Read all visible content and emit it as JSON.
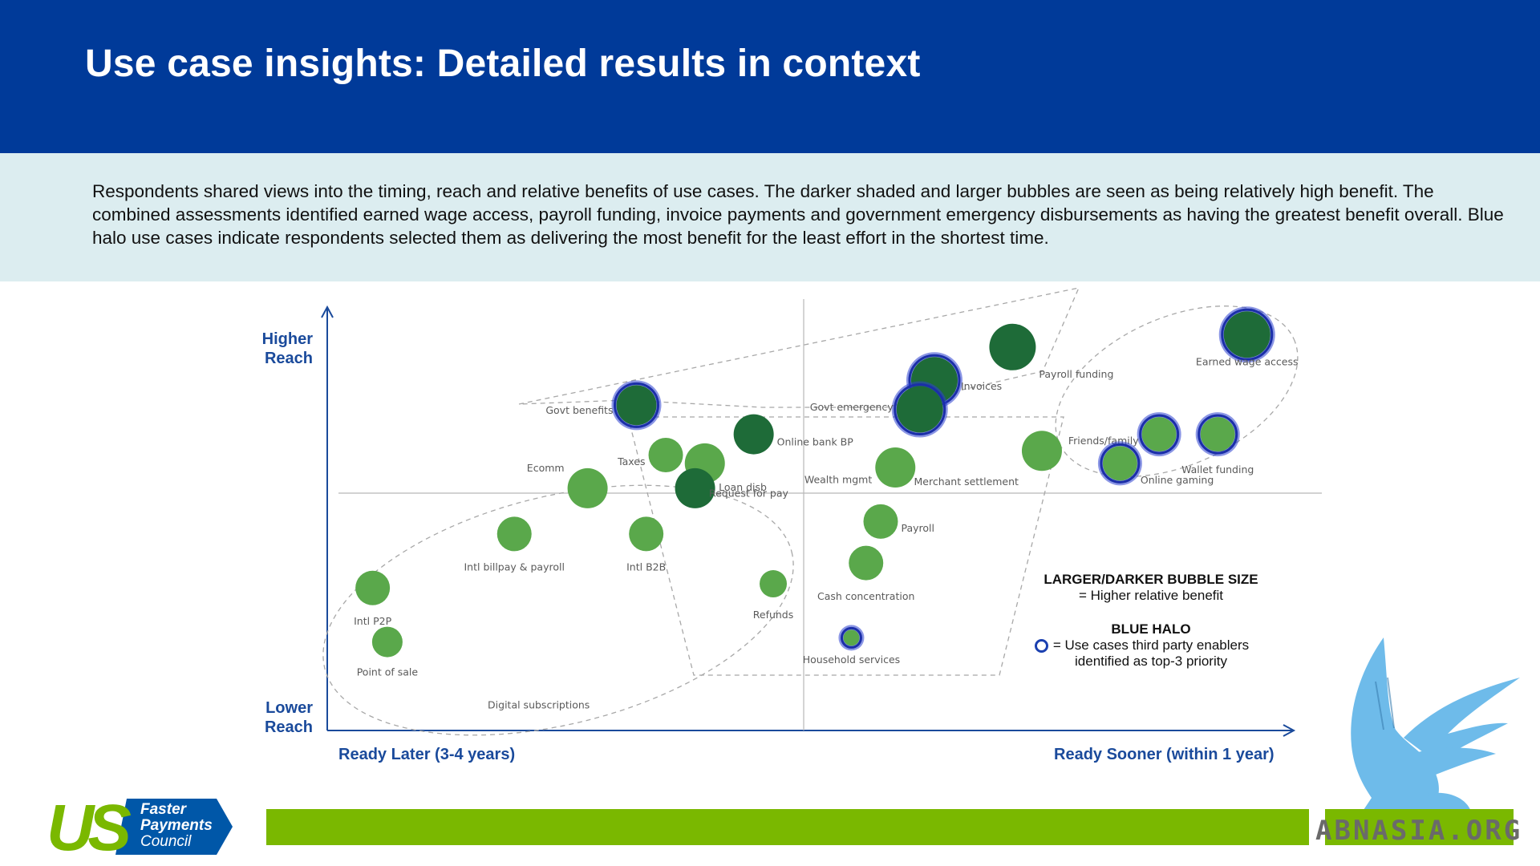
{
  "header": {
    "title": "Use case insights: Detailed results in context"
  },
  "intro": {
    "text": "Respondents shared views into the timing, reach and relative benefits of use cases. The darker shaded and larger bubbles are seen as being relatively high benefit. The combined assessments identified earned wage access, payroll funding, invoice payments and government emergency disbursements as having the greatest benefit overall.  Blue halo use cases indicate respondents selected them as delivering the most benefit for the least effort in the shortest time."
  },
  "axes": {
    "y_top": "Higher\nReach",
    "y_bottom": "Lower\nReach",
    "x_left": "Ready Later (3-4 years)",
    "x_right": "Ready Sooner (within 1 year)"
  },
  "legend": {
    "size_heading": "LARGER/DARKER BUBBLE SIZE",
    "size_text": "= Higher relative benefit",
    "halo_heading": "BLUE HALO",
    "halo_text_1": "= Use cases third party enablers",
    "halo_text_2": "identified as top-3 priority"
  },
  "colors": {
    "header_blue": "#003a99",
    "intro_band": "#dcedf0",
    "bubble_light": "#5aa84b",
    "bubble_dark": "#1e6b38",
    "halo": "#1b40b0",
    "axis_label": "#1a4a9b",
    "footer_green": "#7ab800"
  },
  "logo": {
    "mark": "US",
    "line1": "Faster",
    "line2": "Payments",
    "line3": "Council"
  },
  "watermark": {
    "text": "ABNASIA.ORG",
    "icon": "griffin-icon"
  },
  "chart_data": {
    "type": "scatter",
    "title": "",
    "xlabel": "",
    "ylabel": "",
    "xlim": [
      0,
      100
    ],
    "ylim": [
      0,
      100
    ],
    "grid": false,
    "points": [
      {
        "label": "Earned wage access",
        "x": 93,
        "y": 93,
        "size": 3,
        "shade": "dark",
        "halo": true
      },
      {
        "label": "Payroll funding",
        "x": 69,
        "y": 90,
        "size": 3,
        "shade": "dark",
        "halo": false
      },
      {
        "label": "Invoices",
        "x": 61,
        "y": 82,
        "size": 3,
        "shade": "dark",
        "halo": true
      },
      {
        "label": "Govt emergency",
        "x": 59.5,
        "y": 75,
        "size": 3,
        "shade": "dark",
        "halo": true
      },
      {
        "label": "Govt benefits",
        "x": 30.5,
        "y": 76,
        "size": 2,
        "shade": "dark",
        "halo": true
      },
      {
        "label": "Online bank BP",
        "x": 42.5,
        "y": 69,
        "size": 2,
        "shade": "dark",
        "halo": false
      },
      {
        "label": "Taxes",
        "x": 33.5,
        "y": 64,
        "size": 1,
        "shade": "light",
        "halo": false
      },
      {
        "label": "Loan disb",
        "x": 37.5,
        "y": 62,
        "size": 2,
        "shade": "light",
        "halo": false
      },
      {
        "label": "Request for pay",
        "x": 36.5,
        "y": 56,
        "size": 2,
        "shade": "dark",
        "halo": false
      },
      {
        "label": "Ecomm",
        "x": 25.5,
        "y": 56,
        "size": 2,
        "shade": "light",
        "halo": false
      },
      {
        "label": "Wealth mgmt",
        "x": 57,
        "y": 61,
        "size": 2,
        "shade": "light",
        "halo": false
      },
      {
        "label": "Merchant settlement",
        "x": 72,
        "y": 65,
        "size": 2,
        "shade": "light",
        "halo": false
      },
      {
        "label": "Friends/family",
        "x": 84,
        "y": 69,
        "size": 1,
        "shade": "light",
        "halo": true
      },
      {
        "label": "Wallet funding",
        "x": 90,
        "y": 69,
        "size": 1,
        "shade": "light",
        "halo": true
      },
      {
        "label": "Online gaming",
        "x": 80,
        "y": 62,
        "size": 1,
        "shade": "light",
        "halo": true
      },
      {
        "label": "Payroll",
        "x": 55.5,
        "y": 48,
        "size": 1,
        "shade": "light",
        "halo": false
      },
      {
        "label": "Intl billpay & payroll",
        "x": 18,
        "y": 45,
        "size": 1,
        "shade": "light",
        "halo": false
      },
      {
        "label": "Intl B2B",
        "x": 31.5,
        "y": 45,
        "size": 1,
        "shade": "light",
        "halo": false
      },
      {
        "label": "Cash concentration",
        "x": 54,
        "y": 38,
        "size": 1,
        "shade": "light",
        "halo": false
      },
      {
        "label": "Refunds",
        "x": 44.5,
        "y": 33,
        "size": 0.6,
        "shade": "light",
        "halo": false
      },
      {
        "label": "Household services",
        "x": 52.5,
        "y": 20,
        "size": 0.4,
        "shade": "light",
        "halo": true
      },
      {
        "label": "Intl P2P",
        "x": 3.5,
        "y": 32,
        "size": 1,
        "shade": "light",
        "halo": false
      },
      {
        "label": "Point of sale",
        "x": 5,
        "y": 19,
        "size": 0.7,
        "shade": "light",
        "halo": false
      },
      {
        "label": "Digital subscriptions",
        "x": 20.5,
        "y": 4,
        "size": 0,
        "shade": "light",
        "halo": false
      }
    ]
  }
}
